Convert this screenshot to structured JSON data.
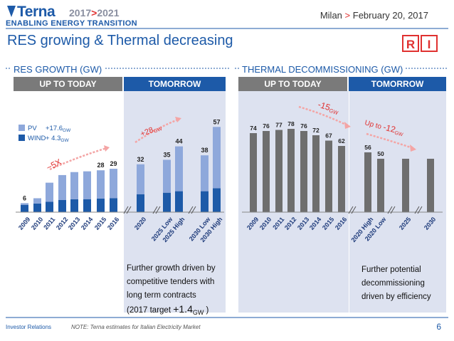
{
  "header": {
    "logo_name": "Terna",
    "logo_years_a": "2017",
    "logo_years_sep": ">",
    "logo_years_b": "2021",
    "logo_subtitle": "ENABLING ENERGY TRANSITION",
    "date_city": "Milan",
    "date_sep": ">",
    "date_text": "February 20, 2017",
    "tag_r": "R",
    "tag_i": "I"
  },
  "title": "RES growing & Thermal decreasing",
  "colors": {
    "blue": "#1d5aa8",
    "light_blue": "#8ea8db",
    "grey_bar": "#6e6e6e",
    "red": "#e03130",
    "panel_bg": "#dde2f0"
  },
  "left_section": {
    "title": "RES GROWTH (GW)",
    "header_left": "UP TO TODAY",
    "header_right": "TOMORROW",
    "legend": {
      "pv_label": "PV",
      "pv_value": "+17.6",
      "pv_unit": "GW",
      "wind_label": "WIND",
      "wind_value": "+ 4.3",
      "wind_unit": "GW"
    },
    "growth_note": "~5X",
    "tomorrow_note": "+28",
    "tomorrow_note_unit": "GW",
    "footnote_line1": "Further growth driven by",
    "footnote_line2": "competitive tenders with",
    "footnote_line3": "long term contracts",
    "footnote_line4_a": "(2017 target ",
    "footnote_line4_b": "+1.4",
    "footnote_line4_unit": "GW",
    "footnote_line4_c": " )"
  },
  "right_section": {
    "title": "THERMAL DECOMMISSIONING (GW)",
    "header_left": "UP TO TODAY",
    "header_right": "TOMORROW",
    "decline_note": "-15",
    "decline_unit": "GW",
    "tomorrow_note_a": "Up to ",
    "tomorrow_note_b": "-12",
    "tomorrow_note_unit": "GW",
    "footnote_line1": "Further potential",
    "footnote_line2": "decommissioning",
    "footnote_line3": "driven by efficiency"
  },
  "chart_data": [
    {
      "type": "bar",
      "stacked": true,
      "title": "RES GROWTH (GW)",
      "categories": [
        "2009",
        "2010",
        "2011",
        "2012",
        "2013",
        "2014",
        "2015",
        "2016",
        "2020",
        "2025 Low",
        "2025 High",
        "2030 Low",
        "2030 High"
      ],
      "totals_labels": [
        "6",
        "",
        "",
        "",
        "",
        "",
        "28",
        "29",
        "32",
        "35",
        "44",
        "38",
        "57"
      ],
      "series": [
        {
          "name": "WIND",
          "values": [
            4.9,
            5.8,
            6.9,
            8.1,
            8.6,
            8.7,
            9.1,
            9.4,
            12,
            13,
            14,
            14,
            16
          ]
        },
        {
          "name": "PV",
          "values": [
            1.1,
            3.5,
            12.8,
            16.7,
            18.2,
            18.6,
            18.9,
            19.6,
            20,
            22,
            30,
            24,
            41
          ]
        }
      ],
      "ylim": [
        0,
        60
      ]
    },
    {
      "type": "bar",
      "title": "THERMAL DECOMMISSIONING (GW)",
      "categories": [
        "2009",
        "2010",
        "2011",
        "2012",
        "2013",
        "2014",
        "2015",
        "2016",
        "2020 High",
        "2020 Low",
        "2025",
        "2030"
      ],
      "values": [
        74,
        76,
        77,
        78,
        76,
        72,
        67,
        62,
        56,
        50,
        50,
        50
      ],
      "value_labels": [
        "74",
        "76",
        "77",
        "78",
        "76",
        "72",
        "67",
        "62",
        "56",
        "50",
        "",
        ""
      ],
      "ylim": [
        0,
        85
      ]
    }
  ],
  "footer": {
    "ir": "Investor Relations",
    "note": "NOTE: Terna estimates for Italian Electricity Market",
    "page": "6"
  }
}
